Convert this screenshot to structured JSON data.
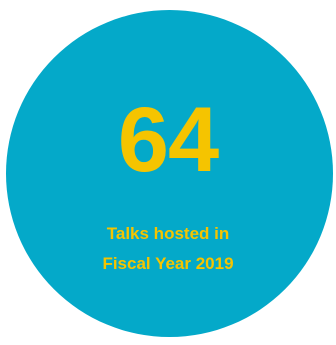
{
  "stat": {
    "value": "64",
    "caption_line_1": "Talks hosted in",
    "caption_line_2": "Fiscal Year 2019"
  },
  "colors": {
    "circle": "#04a9c9",
    "text": "#f5c400",
    "background": "#ffffff"
  }
}
